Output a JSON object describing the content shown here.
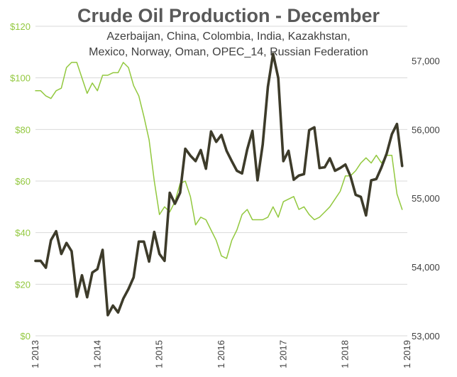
{
  "chart_data": {
    "type": "line",
    "title": "Crude Oil Production - December",
    "subtitle_lines": [
      "Azerbaijan, China, Colombia, India, Kazakhstan,",
      "Mexico, Norway, Oman, OPEC_14, Russian Federation"
    ],
    "x_tick_labels": [
      "1 2013",
      "1 2014",
      "1 2015",
      "1 2016",
      "1 2017",
      "1 2018",
      "1 2019"
    ],
    "x_range_months": [
      0,
      72
    ],
    "y_left": {
      "ylim": [
        0,
        120
      ],
      "ticks": [
        0,
        20,
        40,
        60,
        80,
        100,
        120
      ],
      "tick_labels": [
        "$0",
        "$20",
        "$40",
        "$60",
        "$80",
        "$100",
        "$120"
      ],
      "color": "#92c83e"
    },
    "y_right": {
      "ylim": [
        53000,
        57500
      ],
      "ticks": [
        53000,
        54000,
        55000,
        56000,
        57000
      ],
      "tick_labels": [
        "53,000",
        "54,000",
        "55,000",
        "56,000",
        "57,000"
      ],
      "color": "#404040"
    },
    "grid": "horizontal",
    "series": [
      {
        "axis": "right",
        "color": "#3d3b2a",
        "x": [
          0,
          1,
          2,
          3,
          4,
          5,
          6,
          7,
          8,
          9,
          10,
          11,
          12,
          13,
          14,
          15,
          16,
          17,
          18,
          19,
          20,
          21,
          22,
          23,
          24,
          25,
          26,
          27,
          28,
          29,
          30,
          31,
          32,
          33,
          34,
          35,
          36,
          37,
          38,
          39,
          40,
          41,
          42,
          43,
          44,
          45,
          46,
          47,
          48,
          49,
          50,
          51,
          52,
          53,
          54,
          55,
          56,
          57,
          58,
          59,
          60,
          61,
          62,
          63,
          64,
          65,
          66,
          67,
          68,
          69,
          70,
          71
        ],
        "values": [
          54090,
          54090,
          53990,
          54390,
          54520,
          54190,
          54350,
          54230,
          53570,
          53880,
          53560,
          53920,
          53970,
          54250,
          53300,
          53440,
          53340,
          53540,
          53680,
          53850,
          54370,
          54370,
          54080,
          54510,
          54190,
          54090,
          55080,
          54920,
          55080,
          55720,
          55620,
          55540,
          55700,
          55430,
          55970,
          55820,
          55920,
          55690,
          55540,
          55400,
          55360,
          55710,
          55980,
          55260,
          55780,
          56620,
          57100,
          56750,
          55540,
          55690,
          55270,
          55330,
          55350,
          55990,
          56030,
          55440,
          55450,
          55580,
          55400,
          55440,
          55490,
          55320,
          55050,
          55020,
          54750,
          55260,
          55280,
          55450,
          55650,
          55930,
          56080,
          55470
        ]
      },
      {
        "axis": "left",
        "color": "#92c83e",
        "x": [
          0,
          1,
          2,
          3,
          4,
          5,
          6,
          7,
          8,
          9,
          10,
          11,
          12,
          13,
          14,
          15,
          16,
          17,
          18,
          19,
          20,
          21,
          22,
          23,
          24,
          25,
          26,
          27,
          28,
          29,
          30,
          31,
          32,
          33,
          34,
          35,
          36,
          37,
          38,
          39,
          40,
          41,
          42,
          43,
          44,
          45,
          46,
          47,
          48,
          49,
          50,
          51,
          52,
          53,
          54,
          55,
          56,
          57,
          58,
          59,
          60,
          61,
          62,
          63,
          64,
          65,
          66,
          67,
          68,
          69,
          70,
          71
        ],
        "values": [
          95,
          95,
          93,
          92,
          95,
          96,
          104,
          106,
          106,
          100,
          94,
          98,
          95,
          101,
          101,
          102,
          102,
          106,
          104,
          97,
          93,
          85,
          76,
          60,
          47,
          50,
          48,
          52,
          59,
          60,
          54,
          43,
          46,
          45,
          41,
          37,
          31,
          30,
          37,
          41,
          47,
          49,
          45,
          45,
          45,
          46,
          50,
          46,
          52,
          53,
          54,
          49,
          50,
          47,
          45,
          46,
          48,
          50,
          53,
          56,
          62,
          62,
          64,
          67,
          69,
          67,
          70,
          67,
          70,
          70,
          55,
          49
        ]
      }
    ]
  }
}
